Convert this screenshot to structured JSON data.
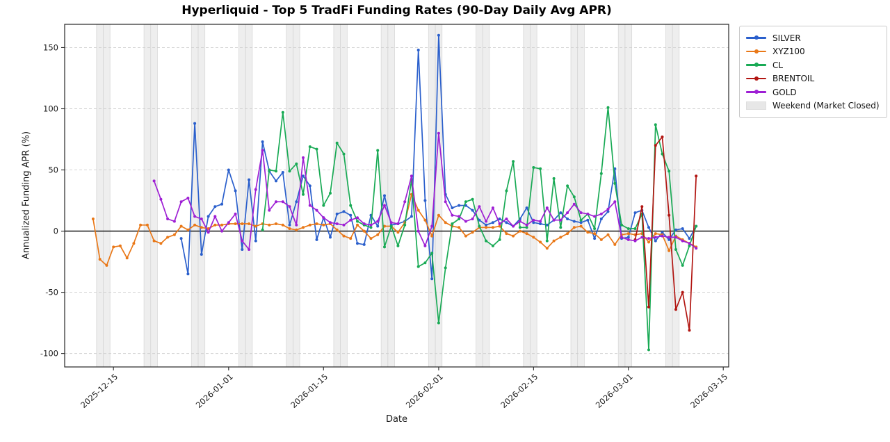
{
  "chart_data": {
    "type": "line",
    "title": "Hyperliquid - Top 5 TradFi Funding Rates (90-Day Daily Avg APR)",
    "xlabel": "Date",
    "ylabel": "Annualized Funding APR (%)",
    "grid": true,
    "legend_position": "outside-top-right",
    "x_base": "2025-12-12",
    "x_domain_days": [
      -4.2,
      93.8
    ],
    "ylim": [
      -111,
      169
    ],
    "yticks": [
      -100,
      -50,
      0,
      50,
      100,
      150
    ],
    "xticks": [
      "2025-12-15",
      "2026-01-01",
      "2026-01-15",
      "2026-02-01",
      "2026-02-15",
      "2026-03-01",
      "2026-03-15"
    ],
    "zero_line": 0,
    "weekend_label": "Weekend (Market Closed)",
    "weekend_color": "#e7e7e7",
    "weekend_saturdays": [
      "2025-12-13",
      "2025-12-20",
      "2025-12-27",
      "2026-01-03",
      "2026-01-10",
      "2026-01-17",
      "2026-01-24",
      "2026-01-31",
      "2026-02-07",
      "2026-02-14",
      "2026-02-21",
      "2026-02-28",
      "2026-03-07"
    ],
    "series": [
      {
        "name": "SILVER",
        "color": "#2a5fcc",
        "start": "2025-12-25",
        "values": [
          -6,
          -35,
          88,
          -19,
          12,
          20,
          22,
          50,
          33,
          -15,
          42,
          -8,
          73,
          49,
          41,
          48,
          5,
          24,
          45,
          37,
          -7,
          11,
          -5,
          14,
          16,
          13,
          -10,
          -11,
          13,
          4,
          29,
          5,
          6,
          8,
          12,
          148,
          25,
          -39,
          160,
          30,
          19,
          21,
          21,
          17,
          9,
          5,
          7,
          10,
          7,
          4,
          10,
          19,
          7,
          6,
          5,
          9,
          15,
          10,
          8,
          7,
          9,
          -6,
          10,
          16,
          51,
          -6,
          -5,
          15,
          17,
          3,
          -8,
          -1,
          -7,
          1,
          2,
          -6,
          4
        ]
      },
      {
        "name": "XYZ100",
        "color": "#e97818",
        "start": "2025-12-12",
        "values": [
          10,
          -23,
          -28,
          -13,
          -12,
          -22,
          -10,
          5,
          5,
          -8,
          -10,
          -5,
          -3,
          4,
          1,
          5,
          3,
          2,
          5,
          5,
          6,
          6,
          6,
          6,
          4,
          6,
          5,
          6,
          5,
          2,
          1,
          3,
          5,
          6,
          5,
          6,
          1,
          -4,
          -6,
          5,
          0,
          -6,
          -3,
          4,
          4,
          -1,
          7,
          30,
          17,
          9,
          -4,
          13,
          7,
          4,
          3,
          -4,
          -1,
          3,
          3,
          3,
          4,
          -2,
          -4,
          0,
          -2,
          -5,
          -9,
          -14,
          -8,
          -5,
          -2,
          3,
          4,
          -1,
          -2,
          -7,
          -3,
          -11,
          -3,
          -2,
          -3,
          -2,
          -9,
          -2,
          -3,
          -16,
          -4,
          -7,
          -10,
          -13
        ]
      },
      {
        "name": "CL",
        "color": "#19aa55",
        "start": "2026-01-06",
        "values": [
          1,
          50,
          49,
          97,
          49,
          55,
          30,
          69,
          67,
          21,
          31,
          72,
          63,
          21,
          8,
          5,
          3,
          66,
          -13,
          4,
          -12,
          5,
          42,
          -29,
          -26,
          -18,
          -75,
          -30,
          6,
          10,
          24,
          26,
          4,
          -8,
          -12,
          -7,
          33,
          57,
          3,
          3,
          52,
          51,
          -8,
          43,
          3,
          37,
          28,
          9,
          14,
          2,
          47,
          101,
          39,
          5,
          2,
          2,
          14,
          -97,
          87,
          63,
          49,
          -15,
          -28,
          -12,
          4
        ]
      },
      {
        "name": "BRENTOIL",
        "color": "#b21612",
        "start": "2026-03-02",
        "values": [
          -7,
          20,
          -62,
          70,
          77,
          13,
          -64,
          -50,
          -81,
          45
        ]
      },
      {
        "name": "GOLD",
        "color": "#9e1fd4",
        "start": "2025-12-21",
        "values": [
          41,
          26,
          10,
          8,
          24,
          27,
          12,
          10,
          -1,
          12,
          0,
          7,
          14,
          -8,
          -15,
          34,
          66,
          17,
          24,
          24,
          20,
          5,
          60,
          21,
          17,
          11,
          7,
          6,
          5,
          9,
          11,
          6,
          5,
          8,
          21,
          7,
          6,
          24,
          45,
          0,
          -12,
          4,
          80,
          24,
          13,
          12,
          8,
          10,
          20,
          8,
          19,
          6,
          10,
          4,
          8,
          5,
          9,
          8,
          19,
          9,
          9,
          15,
          22,
          15,
          14,
          12,
          14,
          18,
          24,
          -5,
          -7,
          -8,
          -5,
          -6,
          -5,
          -4,
          -5,
          -5,
          -8,
          -10,
          -14
        ]
      }
    ]
  }
}
